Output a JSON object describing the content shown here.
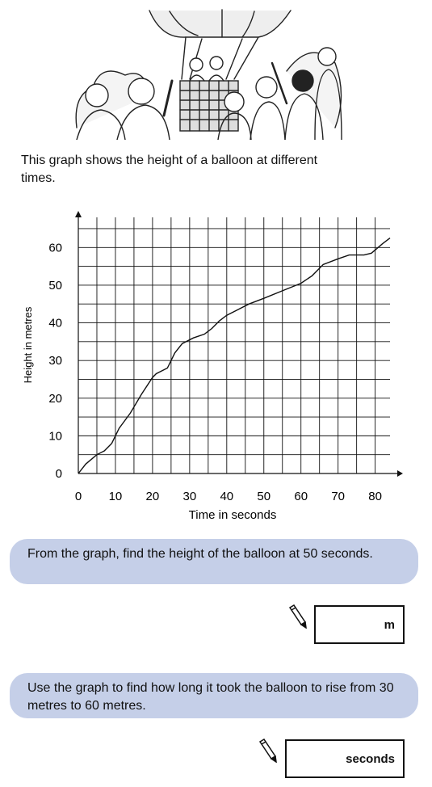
{
  "intro_text": "This graph shows the height of a balloon at different times.",
  "illustration": {
    "icon": "hot-air-balloon-crowd-illustration"
  },
  "chart_data": {
    "type": "line",
    "xlabel": "Time in seconds",
    "ylabel": "Height in metres",
    "xlim": [
      0,
      84
    ],
    "ylim": [
      0,
      68
    ],
    "x_ticks": [
      0,
      10,
      20,
      30,
      40,
      50,
      60,
      70,
      80
    ],
    "y_ticks": [
      0,
      10,
      20,
      30,
      40,
      50,
      60
    ],
    "grid": true,
    "series": [
      {
        "x": [
          0,
          2,
          5,
          7,
          9,
          11,
          14,
          17,
          20,
          21,
          24,
          26,
          28,
          31,
          34,
          36,
          38,
          40,
          43,
          46,
          50,
          55,
          60,
          63,
          66,
          70,
          73,
          77,
          79,
          82,
          84
        ],
        "y": [
          0,
          2.5,
          5,
          6,
          8,
          12,
          16,
          21,
          25.5,
          26.5,
          28,
          32,
          34.5,
          36,
          37,
          38.5,
          40.5,
          42,
          43.5,
          45,
          46.5,
          48.5,
          50.5,
          52.5,
          55.5,
          57,
          58,
          58,
          58.5,
          61,
          62.5
        ]
      }
    ]
  },
  "question1": {
    "text": "From the graph, find the height of the balloon at 50 seconds.",
    "unit": "m"
  },
  "question2": {
    "text": "Use the graph to find how long it took the balloon to rise from 30 metres to 60 metres.",
    "unit": "seconds"
  },
  "icons": {
    "answer": "pencil-icon"
  }
}
